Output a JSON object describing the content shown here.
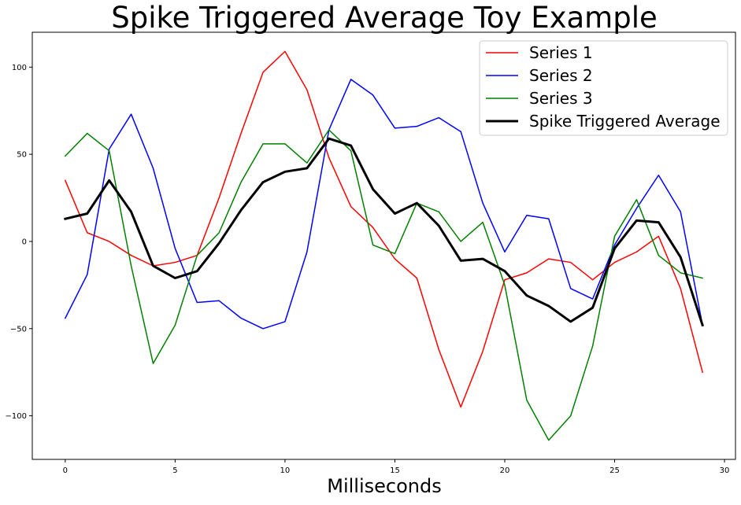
{
  "chart_data": {
    "type": "line",
    "title": "Spike Triggered Average Toy Example",
    "xlabel": "Milliseconds",
    "ylabel": "",
    "xlim": [
      -1.5,
      30.5
    ],
    "ylim": [
      -125,
      120
    ],
    "x_ticks": [
      0,
      5,
      10,
      15,
      20,
      25,
      30
    ],
    "x_tick_labels": [
      "0",
      "5",
      "10",
      "15",
      "20",
      "25",
      "30"
    ],
    "y_ticks": [
      100,
      50,
      0,
      -50,
      -100
    ],
    "y_tick_labels": [
      "100",
      "50",
      "0",
      "−50",
      "−100"
    ],
    "grid": false,
    "legend_position": "top-right",
    "x": [
      0,
      1,
      2,
      3,
      4,
      5,
      6,
      7,
      8,
      9,
      10,
      11,
      12,
      13,
      14,
      15,
      16,
      17,
      18,
      19,
      20,
      21,
      22,
      23,
      24,
      25,
      26,
      27,
      28,
      29
    ],
    "series": [
      {
        "name": "Series 1",
        "color": "#ff0000",
        "line_width": "thin",
        "values": [
          35,
          5,
          0,
          -8,
          -14,
          -12,
          -8,
          25,
          62,
          97,
          109,
          87,
          48,
          20,
          8,
          -10,
          -21,
          -62,
          -95,
          -63,
          -22,
          -18,
          -10,
          -12,
          -22,
          -12,
          -6,
          3,
          -27,
          -75
        ]
      },
      {
        "name": "Series 2",
        "color": "#0000ff",
        "line_width": "thin",
        "values": [
          -44,
          -19,
          53,
          73,
          42,
          -4,
          -35,
          -34,
          -44,
          -50,
          -46,
          -6,
          64,
          93,
          84,
          65,
          66,
          71,
          63,
          22,
          -6,
          15,
          13,
          -27,
          -33,
          -2,
          19,
          38,
          17,
          -48
        ]
      },
      {
        "name": "Series 3",
        "color": "#008000",
        "line_width": "thin",
        "values": [
          49,
          62,
          52,
          -14,
          -70,
          -48,
          -8,
          5,
          34,
          56,
          56,
          45,
          64,
          52,
          -2,
          -7,
          22,
          17,
          0,
          11,
          -25,
          -91,
          -114,
          -100,
          -60,
          3,
          24,
          -8,
          -18,
          -21
        ]
      },
      {
        "name": "Spike Triggered Average",
        "color": "#000000",
        "line_width": "thick",
        "values": [
          13,
          16,
          35,
          17,
          -14,
          -21,
          -17,
          -1,
          18,
          34,
          40,
          42,
          59,
          55,
          30,
          16,
          22,
          9,
          -11,
          -10,
          -17,
          -31,
          -37,
          -46,
          -38,
          -4,
          12,
          11,
          -9,
          -48
        ]
      }
    ]
  }
}
